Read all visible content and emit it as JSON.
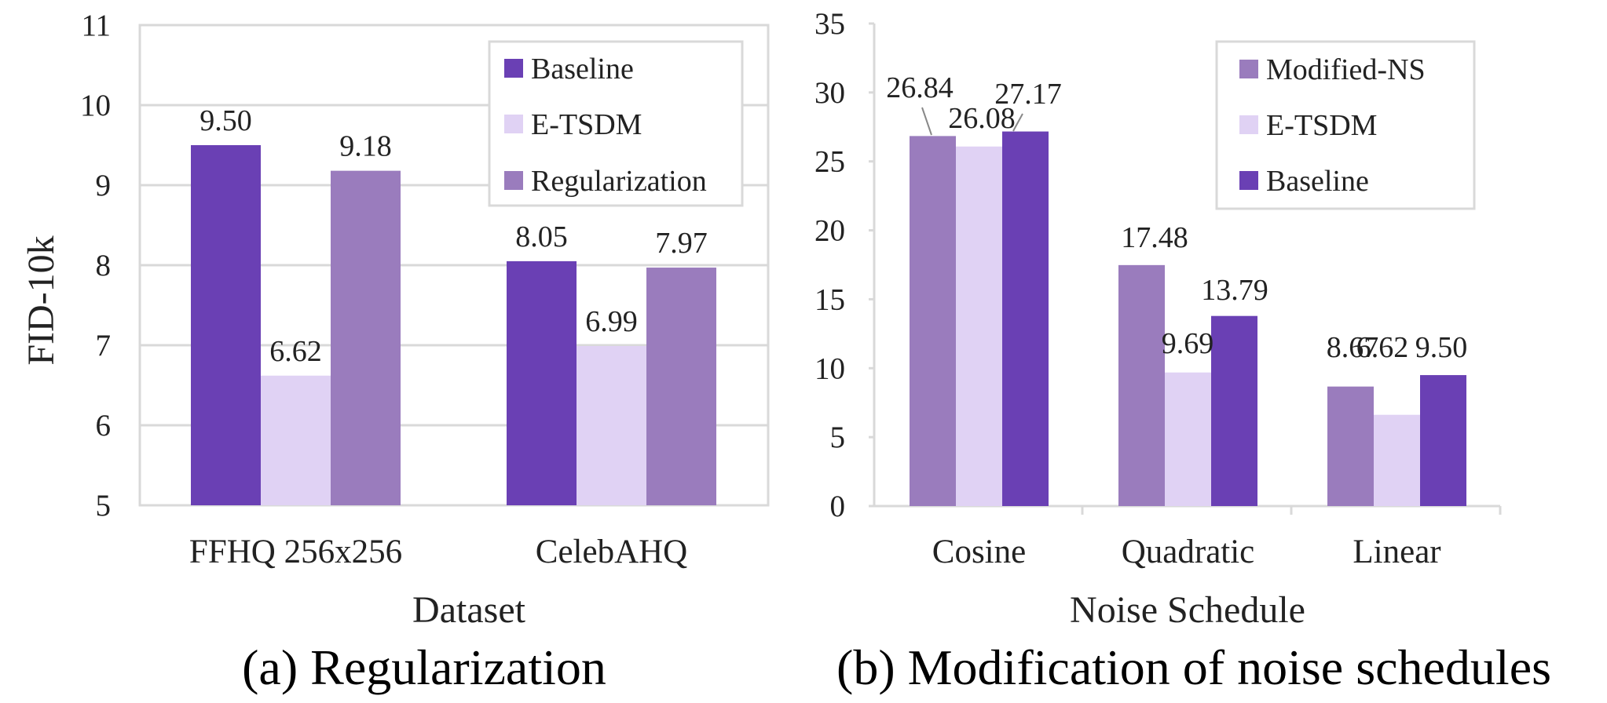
{
  "colors": {
    "dark_purple": "#6a40b4",
    "light_lavender": "#e0d2f4",
    "medium_purple": "#9a7cbd",
    "grid": "#d9d9d9",
    "axis": "#d9d9d9",
    "leader": "#888888"
  },
  "chart_data": [
    {
      "type": "bar",
      "caption": "(a) Regularization",
      "xlabel": "Dataset",
      "ylabel": "FID-10k",
      "ylim": [
        5,
        11
      ],
      "yticks": [
        "5",
        "6",
        "7",
        "8",
        "9",
        "10",
        "11"
      ],
      "grid": true,
      "legend_position": "top-right",
      "categories": [
        "FFHQ 256x256",
        "CelebAHQ"
      ],
      "series": [
        {
          "name": "Baseline",
          "color": "#6a40b4",
          "values": [
            9.5,
            8.05
          ],
          "labels": [
            "9.50",
            "8.05"
          ]
        },
        {
          "name": "E-TSDM",
          "color": "#e0d2f4",
          "values": [
            6.62,
            6.99
          ],
          "labels": [
            "6.62",
            "6.99"
          ]
        },
        {
          "name": "Regularization",
          "color": "#9a7cbd",
          "values": [
            9.18,
            7.97
          ],
          "labels": [
            "9.18",
            "7.97"
          ]
        }
      ]
    },
    {
      "type": "bar",
      "caption": "(b) Modification of noise schedules",
      "xlabel": "Noise Schedule",
      "ylabel": "",
      "ylim": [
        0,
        35
      ],
      "yticks": [
        "0",
        "5",
        "10",
        "15",
        "20",
        "25",
        "30",
        "35"
      ],
      "grid": false,
      "legend_position": "top-right",
      "categories": [
        "Cosine",
        "Quadratic",
        "Linear"
      ],
      "series": [
        {
          "name": "Modified-NS",
          "color": "#9a7cbd",
          "values": [
            26.84,
            17.48,
            8.67
          ],
          "labels": [
            "26.84",
            "17.48",
            "8.67"
          ]
        },
        {
          "name": "E-TSDM",
          "color": "#e0d2f4",
          "values": [
            26.08,
            9.69,
            6.62
          ],
          "labels": [
            "26.08",
            "9.69",
            "6.62"
          ]
        },
        {
          "name": "Baseline",
          "color": "#6a40b4",
          "values": [
            27.17,
            13.79,
            9.5
          ],
          "labels": [
            "27.17",
            "13.79",
            "9.50"
          ]
        }
      ]
    }
  ]
}
